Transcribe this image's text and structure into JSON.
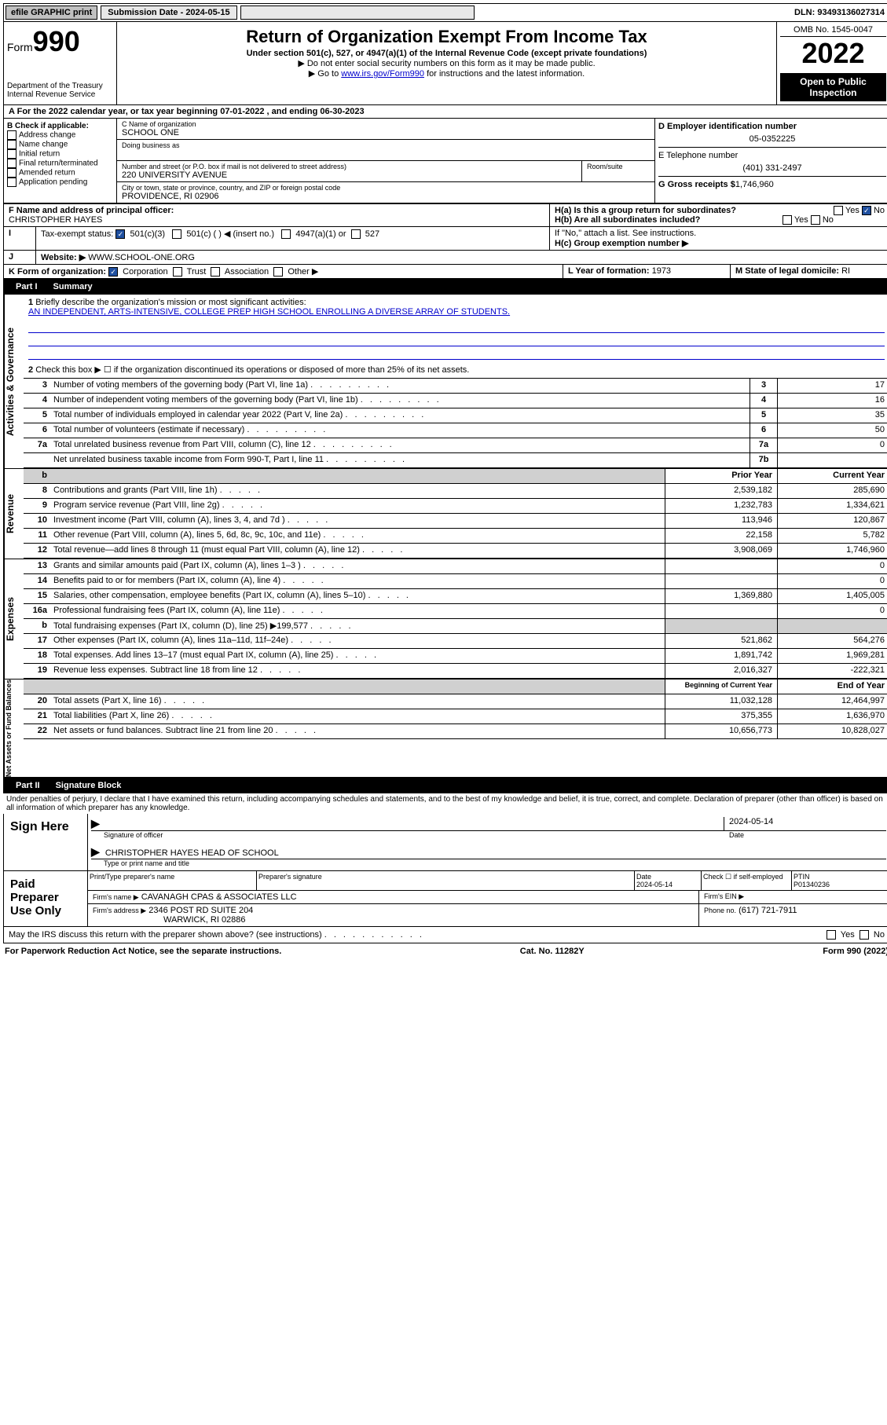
{
  "topbar": {
    "efile": "efile GRAPHIC print",
    "submission_label": "Submission Date - 2024-05-15",
    "dln": "DLN: 93493136027314"
  },
  "header": {
    "form_prefix": "Form",
    "form_num": "990",
    "dept": "Department of the Treasury",
    "irs": "Internal Revenue Service",
    "title": "Return of Organization Exempt From Income Tax",
    "subtitle": "Under section 501(c), 527, or 4947(a)(1) of the Internal Revenue Code (except private foundations)",
    "note1": "▶ Do not enter social security numbers on this form as it may be made public.",
    "note2_pre": "▶ Go to ",
    "note2_link": "www.irs.gov/Form990",
    "note2_post": " for instructions and the latest information.",
    "omb": "OMB No. 1545-0047",
    "year": "2022",
    "open": "Open to Public Inspection"
  },
  "a_line": "For the 2022 calendar year, or tax year beginning 07-01-2022   , and ending 06-30-2023",
  "b": {
    "title": "B Check if applicable:",
    "items": [
      "Address change",
      "Name change",
      "Initial return",
      "Final return/terminated",
      "Amended return",
      "Application pending"
    ]
  },
  "c": {
    "name_label": "C Name of organization",
    "name": "SCHOOL ONE",
    "dba_label": "Doing business as",
    "addr_label": "Number and street (or P.O. box if mail is not delivered to street address)",
    "room_label": "Room/suite",
    "addr": "220 UNIVERSITY AVENUE",
    "city_label": "City or town, state or province, country, and ZIP or foreign postal code",
    "city": "PROVIDENCE, RI  02906"
  },
  "d": {
    "label": "D Employer identification number",
    "val": "05-0352225"
  },
  "e": {
    "label": "E Telephone number",
    "val": "(401) 331-2497"
  },
  "g": {
    "label": "G Gross receipts $",
    "val": "1,746,960"
  },
  "f": {
    "label": "F Name and address of principal officer:",
    "val": "CHRISTOPHER HAYES"
  },
  "h": {
    "a": "H(a)  Is this a group return for subordinates?",
    "yes": "Yes",
    "no": "No",
    "b": "H(b)  Are all subordinates included?",
    "b_note": "If \"No,\" attach a list. See instructions.",
    "c": "H(c)  Group exemption number ▶"
  },
  "i": {
    "label": "Tax-exempt status:",
    "o1": "501(c)(3)",
    "o2": "501(c) (   ) ◀ (insert no.)",
    "o3": "4947(a)(1) or",
    "o4": "527"
  },
  "j": {
    "label": "Website: ▶",
    "val": "WWW.SCHOOL-ONE.ORG"
  },
  "k": {
    "label": "K Form of organization:",
    "o1": "Corporation",
    "o2": "Trust",
    "o3": "Association",
    "o4": "Other ▶"
  },
  "l": {
    "label": "L Year of formation:",
    "val": "1973"
  },
  "m": {
    "label": "M State of legal domicile:",
    "val": "RI"
  },
  "part1": {
    "title": "Part I",
    "name": "Summary",
    "l1": "Briefly describe the organization's mission or most significant activities:",
    "mission": "AN INDEPENDENT, ARTS-INTENSIVE, COLLEGE PREP HIGH SCHOOL ENROLLING A DIVERSE ARRAY OF STUDENTS.",
    "l2": "Check this box ▶ ☐  if the organization discontinued its operations or disposed of more than 25% of its net assets.",
    "rows_gov": [
      {
        "n": "3",
        "t": "Number of voting members of the governing body (Part VI, line 1a)",
        "c": "3",
        "v": "17"
      },
      {
        "n": "4",
        "t": "Number of independent voting members of the governing body (Part VI, line 1b)",
        "c": "4",
        "v": "16"
      },
      {
        "n": "5",
        "t": "Total number of individuals employed in calendar year 2022 (Part V, line 2a)",
        "c": "5",
        "v": "35"
      },
      {
        "n": "6",
        "t": "Total number of volunteers (estimate if necessary)",
        "c": "6",
        "v": "50"
      },
      {
        "n": "7a",
        "t": "Total unrelated business revenue from Part VIII, column (C), line 12",
        "c": "7a",
        "v": "0"
      },
      {
        "n": "",
        "t": "Net unrelated business taxable income from Form 990-T, Part I, line 11",
        "c": "7b",
        "v": ""
      }
    ],
    "prior_hdr": "Prior Year",
    "curr_hdr": "Current Year",
    "rows_rev": [
      {
        "n": "8",
        "t": "Contributions and grants (Part VIII, line 1h)",
        "p": "2,539,182",
        "c": "285,690"
      },
      {
        "n": "9",
        "t": "Program service revenue (Part VIII, line 2g)",
        "p": "1,232,783",
        "c": "1,334,621"
      },
      {
        "n": "10",
        "t": "Investment income (Part VIII, column (A), lines 3, 4, and 7d )",
        "p": "113,946",
        "c": "120,867"
      },
      {
        "n": "11",
        "t": "Other revenue (Part VIII, column (A), lines 5, 6d, 8c, 9c, 10c, and 11e)",
        "p": "22,158",
        "c": "5,782"
      },
      {
        "n": "12",
        "t": "Total revenue—add lines 8 through 11 (must equal Part VIII, column (A), line 12)",
        "p": "3,908,069",
        "c": "1,746,960"
      }
    ],
    "rows_exp": [
      {
        "n": "13",
        "t": "Grants and similar amounts paid (Part IX, column (A), lines 1–3 )",
        "p": "",
        "c": "0"
      },
      {
        "n": "14",
        "t": "Benefits paid to or for members (Part IX, column (A), line 4)",
        "p": "",
        "c": "0"
      },
      {
        "n": "15",
        "t": "Salaries, other compensation, employee benefits (Part IX, column (A), lines 5–10)",
        "p": "1,369,880",
        "c": "1,405,005"
      },
      {
        "n": "16a",
        "t": "Professional fundraising fees (Part IX, column (A), line 11e)",
        "p": "",
        "c": "0"
      },
      {
        "n": "b",
        "t": "Total fundraising expenses (Part IX, column (D), line 25) ▶199,577",
        "p": "gray",
        "c": "gray"
      },
      {
        "n": "17",
        "t": "Other expenses (Part IX, column (A), lines 11a–11d, 11f–24e)",
        "p": "521,862",
        "c": "564,276"
      },
      {
        "n": "18",
        "t": "Total expenses. Add lines 13–17 (must equal Part IX, column (A), line 25)",
        "p": "1,891,742",
        "c": "1,969,281"
      },
      {
        "n": "19",
        "t": "Revenue less expenses. Subtract line 18 from line 12",
        "p": "2,016,327",
        "c": "-222,321"
      }
    ],
    "beg_hdr": "Beginning of Current Year",
    "end_hdr": "End of Year",
    "rows_net": [
      {
        "n": "20",
        "t": "Total assets (Part X, line 16)",
        "p": "11,032,128",
        "c": "12,464,997"
      },
      {
        "n": "21",
        "t": "Total liabilities (Part X, line 26)",
        "p": "375,355",
        "c": "1,636,970"
      },
      {
        "n": "22",
        "t": "Net assets or fund balances. Subtract line 21 from line 20",
        "p": "10,656,773",
        "c": "10,828,027"
      }
    ],
    "vlabels": [
      "Activities & Governance",
      "Revenue",
      "Expenses",
      "Net Assets or Fund Balances"
    ]
  },
  "part2": {
    "title": "Part II",
    "name": "Signature Block",
    "decl": "Under penalties of perjury, I declare that I have examined this return, including accompanying schedules and statements, and to the best of my knowledge and belief, it is true, correct, and complete. Declaration of preparer (other than officer) is based on all information of which preparer has any knowledge.",
    "sign_here": "Sign Here",
    "sig_officer": "Signature of officer",
    "sig_date": "Date",
    "sig_date_val": "2024-05-14",
    "sig_name": "CHRISTOPHER HAYES HEAD OF SCHOOL",
    "sig_name_label": "Type or print name and title",
    "paid": "Paid Preparer Use Only",
    "prep_name_label": "Print/Type preparer's name",
    "prep_sig_label": "Preparer's signature",
    "prep_date_label": "Date",
    "prep_date": "2024-05-14",
    "prep_check": "Check ☐ if self-employed",
    "ptin_label": "PTIN",
    "ptin": "P01340236",
    "firm_name_label": "Firm's name    ▶",
    "firm_name": "CAVANAGH CPAS & ASSOCIATES LLC",
    "firm_ein_label": "Firm's EIN ▶",
    "firm_addr_label": "Firm's address ▶",
    "firm_addr1": "2346 POST RD SUITE 204",
    "firm_addr2": "WARWICK, RI  02886",
    "firm_phone_label": "Phone no.",
    "firm_phone": "(617) 721-7911",
    "may_irs": "May the IRS discuss this return with the preparer shown above? (see instructions)"
  },
  "footer": {
    "left": "For Paperwork Reduction Act Notice, see the separate instructions.",
    "mid": "Cat. No. 11282Y",
    "right": "Form 990 (2022)"
  }
}
